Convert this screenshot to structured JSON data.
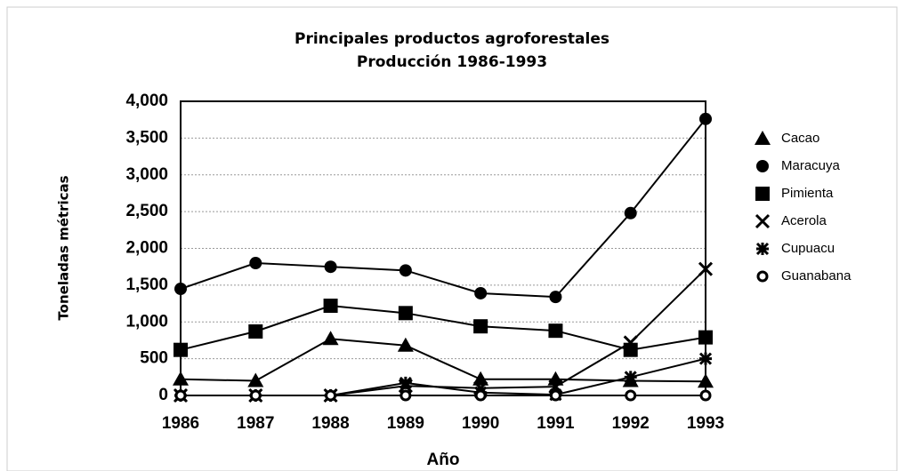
{
  "chart_data": {
    "type": "line",
    "title": [
      "Principales productos agroforestales",
      "Producción 1986-1993"
    ],
    "y_label": "Toneladas métricas",
    "x_label": "Año",
    "categories": [
      "1986",
      "1987",
      "1988",
      "1989",
      "1990",
      "1991",
      "1992",
      "1993"
    ],
    "series": [
      {
        "name": "Cacao",
        "color": "#000000",
        "marker": "triangle",
        "values": [
          220,
          200,
          770,
          680,
          220,
          220,
          200,
          190
        ]
      },
      {
        "name": "Maracuya",
        "color": "#000000",
        "marker": "circle",
        "values": [
          1450,
          1800,
          1750,
          1700,
          1390,
          1340,
          2480,
          3760
        ]
      },
      {
        "name": "Pimienta",
        "color": "#000000",
        "marker": "square",
        "values": [
          620,
          870,
          1220,
          1120,
          940,
          880,
          620,
          790
        ]
      },
      {
        "name": "Acerola",
        "color": "#000000",
        "marker": "x",
        "values": [
          0,
          0,
          0,
          130,
          100,
          120,
          720,
          1720
        ]
      },
      {
        "name": "Cupuacu",
        "color": "#000000",
        "marker": "asterisk",
        "values": [
          0,
          0,
          0,
          170,
          40,
          10,
          250,
          500
        ]
      },
      {
        "name": "Guanabana",
        "color": "#000000",
        "marker": "open-circle",
        "values": [
          0,
          0,
          0,
          0,
          0,
          0,
          0,
          0
        ]
      }
    ],
    "ylim": [
      0,
      4000
    ],
    "yticks": [
      0,
      500,
      {
        "value": 1000,
        "label": "1,000"
      },
      {
        "value": 1500,
        "label": "1,500"
      },
      {
        "value": 2000,
        "label": "2,000"
      },
      {
        "value": 2500,
        "label": "2,500"
      },
      {
        "value": 3000,
        "label": "3,000"
      },
      {
        "value": 3500,
        "label": "3,500"
      },
      {
        "value": 4000,
        "label": "4,000"
      }
    ],
    "grid": true,
    "legend": "right"
  }
}
